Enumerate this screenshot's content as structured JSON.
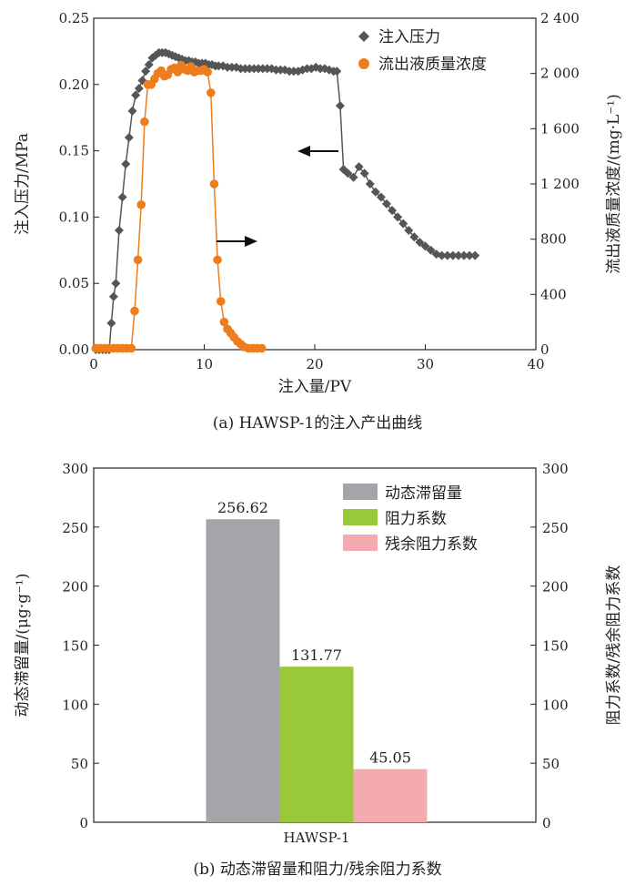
{
  "chart_data": [
    {
      "type": "line",
      "caption": "(a) HAWSP-1的注入产出曲线",
      "xlabel": "注入量/PV",
      "ylabel": "注入压力/MPa",
      "y2label": "流出液质量浓度/(mg·L⁻¹)",
      "xlim": [
        0,
        40
      ],
      "ylim": [
        0,
        0.25
      ],
      "y2lim": [
        0,
        2400
      ],
      "xticks": [
        "0",
        "10",
        "20",
        "30",
        "40"
      ],
      "yticks": [
        "0.00",
        "0.05",
        "0.10",
        "0.15",
        "0.20",
        "0.25"
      ],
      "y2ticks": [
        "0",
        "400",
        "800",
        "1 200",
        "1 600",
        "2 000",
        "2 400"
      ],
      "grid": false,
      "legend_position": "top-right",
      "series": [
        {
          "name": "注入压力",
          "axis": "left",
          "color": "#555555",
          "marker": "diamond",
          "x": [
            0.2,
            0.5,
            0.8,
            1.1,
            1.4,
            1.6,
            1.8,
            2.0,
            2.3,
            2.6,
            2.9,
            3.2,
            3.5,
            3.8,
            4.1,
            4.4,
            4.7,
            5.0,
            5.3,
            5.6,
            5.9,
            6.2,
            6.5,
            6.8,
            7.1,
            7.4,
            7.7,
            8.0,
            8.3,
            8.6,
            8.9,
            9.2,
            9.5,
            9.8,
            10.1,
            10.4,
            10.7,
            11.0,
            11.3,
            11.7,
            12.1,
            12.5,
            12.9,
            13.3,
            13.7,
            14.1,
            14.5,
            14.9,
            15.3,
            15.7,
            16.1,
            16.5,
            16.9,
            17.3,
            17.7,
            18.1,
            18.5,
            18.9,
            19.3,
            19.7,
            20.1,
            20.5,
            20.9,
            21.3,
            21.7,
            22.0,
            22.3,
            22.6,
            23.0,
            23.5,
            24.0,
            24.5,
            25.0,
            25.5,
            26.0,
            26.5,
            27.0,
            27.5,
            28.0,
            28.5,
            29.0,
            29.5,
            30.0,
            30.5,
            31.0,
            31.5,
            32.0,
            32.5,
            33.0,
            33.5,
            34.0,
            34.5
          ],
          "y": [
            0.0,
            0.0,
            0.0,
            0.0,
            0.0,
            0.02,
            0.04,
            0.05,
            0.09,
            0.115,
            0.14,
            0.16,
            0.18,
            0.192,
            0.197,
            0.203,
            0.21,
            0.215,
            0.22,
            0.222,
            0.224,
            0.224,
            0.224,
            0.223,
            0.222,
            0.221,
            0.22,
            0.219,
            0.218,
            0.218,
            0.217,
            0.217,
            0.216,
            0.216,
            0.216,
            0.215,
            0.215,
            0.214,
            0.214,
            0.214,
            0.213,
            0.213,
            0.213,
            0.212,
            0.212,
            0.212,
            0.212,
            0.212,
            0.212,
            0.212,
            0.212,
            0.211,
            0.211,
            0.211,
            0.21,
            0.21,
            0.21,
            0.211,
            0.212,
            0.212,
            0.213,
            0.212,
            0.212,
            0.211,
            0.21,
            0.21,
            0.184,
            0.136,
            0.133,
            0.13,
            0.138,
            0.133,
            0.125,
            0.119,
            0.115,
            0.11,
            0.105,
            0.1,
            0.095,
            0.09,
            0.085,
            0.081,
            0.078,
            0.075,
            0.072,
            0.071,
            0.071,
            0.071,
            0.071,
            0.071,
            0.071,
            0.071
          ]
        },
        {
          "name": "流出液质量浓度",
          "axis": "right",
          "color": "#ee7d1c",
          "marker": "circle",
          "x": [
            0.2,
            0.6,
            1.0,
            1.4,
            1.8,
            2.2,
            2.6,
            3.0,
            3.4,
            3.7,
            4.0,
            4.3,
            4.6,
            4.9,
            5.2,
            5.5,
            5.8,
            6.1,
            6.4,
            6.7,
            7.0,
            7.3,
            7.6,
            7.9,
            8.2,
            8.5,
            8.8,
            9.1,
            9.4,
            9.7,
            10.0,
            10.3,
            10.6,
            10.9,
            11.2,
            11.5,
            11.8,
            12.1,
            12.4,
            12.7,
            13.0,
            13.3,
            13.6,
            14.0,
            14.4,
            14.8,
            15.2
          ],
          "y": [
            10,
            10,
            10,
            10,
            10,
            10,
            10,
            10,
            10,
            280,
            650,
            1050,
            1650,
            1920,
            1920,
            1960,
            2000,
            2020,
            1980,
            1990,
            2030,
            2040,
            2010,
            2060,
            2030,
            2020,
            2050,
            2010,
            2020,
            2020,
            2030,
            2010,
            1860,
            1200,
            650,
            350,
            200,
            150,
            120,
            90,
            60,
            40,
            20,
            10,
            10,
            10,
            10
          ]
        }
      ],
      "annotations": [
        "left-arrow",
        "right-arrow"
      ]
    },
    {
      "type": "bar",
      "caption": "(b) 动态滞留量和阻力/残余阻力系数",
      "categories": [
        "HAWSP-1"
      ],
      "ylabel": "动态滞留量/(μg·g⁻¹)",
      "y2label": "阻力系数/残余阻力系数",
      "ylim": [
        0,
        300
      ],
      "y2lim": [
        0,
        300
      ],
      "yticks": [
        "0",
        "50",
        "100",
        "150",
        "200",
        "250",
        "300"
      ],
      "y2ticks": [
        "0",
        "50",
        "100",
        "150",
        "200",
        "250",
        "300"
      ],
      "grid": false,
      "legend_position": "top-right",
      "series": [
        {
          "name": "动态滞留量",
          "values": [
            256.62
          ],
          "label": "256.62",
          "color": "#a5a5a9"
        },
        {
          "name": "阻力系数",
          "values": [
            131.77
          ],
          "label": "131.77",
          "color": "#99c93a"
        },
        {
          "name": "残余阻力系数",
          "values": [
            45.05
          ],
          "label": "45.05",
          "color": "#f4abaf"
        }
      ]
    }
  ]
}
